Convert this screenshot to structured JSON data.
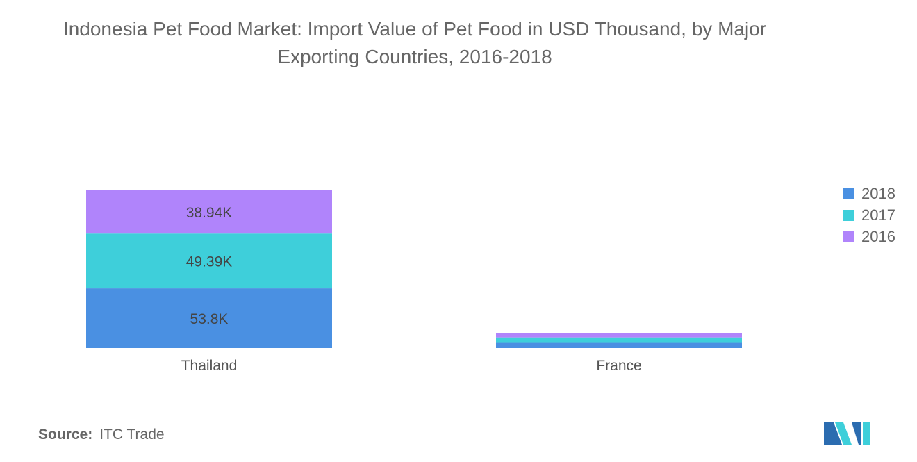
{
  "chart_data": {
    "type": "bar",
    "stacked": true,
    "title_lines": [
      "Indonesia Pet Food Market: Import Value of Pet Food in USD Thousand, by Major",
      "Exporting Countries, 2016-2018"
    ],
    "categories": [
      "Thailand",
      "France"
    ],
    "series": [
      {
        "name": "2018",
        "color": "#4a90e2",
        "values": [
          53.8,
          5.3
        ],
        "labels": [
          "53.8K",
          ""
        ]
      },
      {
        "name": "2017",
        "color": "#3ecfda",
        "values": [
          49.39,
          4.3
        ],
        "labels": [
          "49.39K",
          ""
        ]
      },
      {
        "name": "2016",
        "color": "#b084fb",
        "values": [
          38.94,
          3.7
        ],
        "labels": [
          "38.94K",
          ""
        ]
      }
    ],
    "ylim": [
      0,
      142.13
    ],
    "legend_position": "right",
    "grid": false
  },
  "source": {
    "label": "Source:",
    "value": "ITC Trade"
  },
  "logo": {
    "name": "mordor-intelligence-logo",
    "colors": [
      "#2b6cb0",
      "#3ecfda"
    ]
  }
}
